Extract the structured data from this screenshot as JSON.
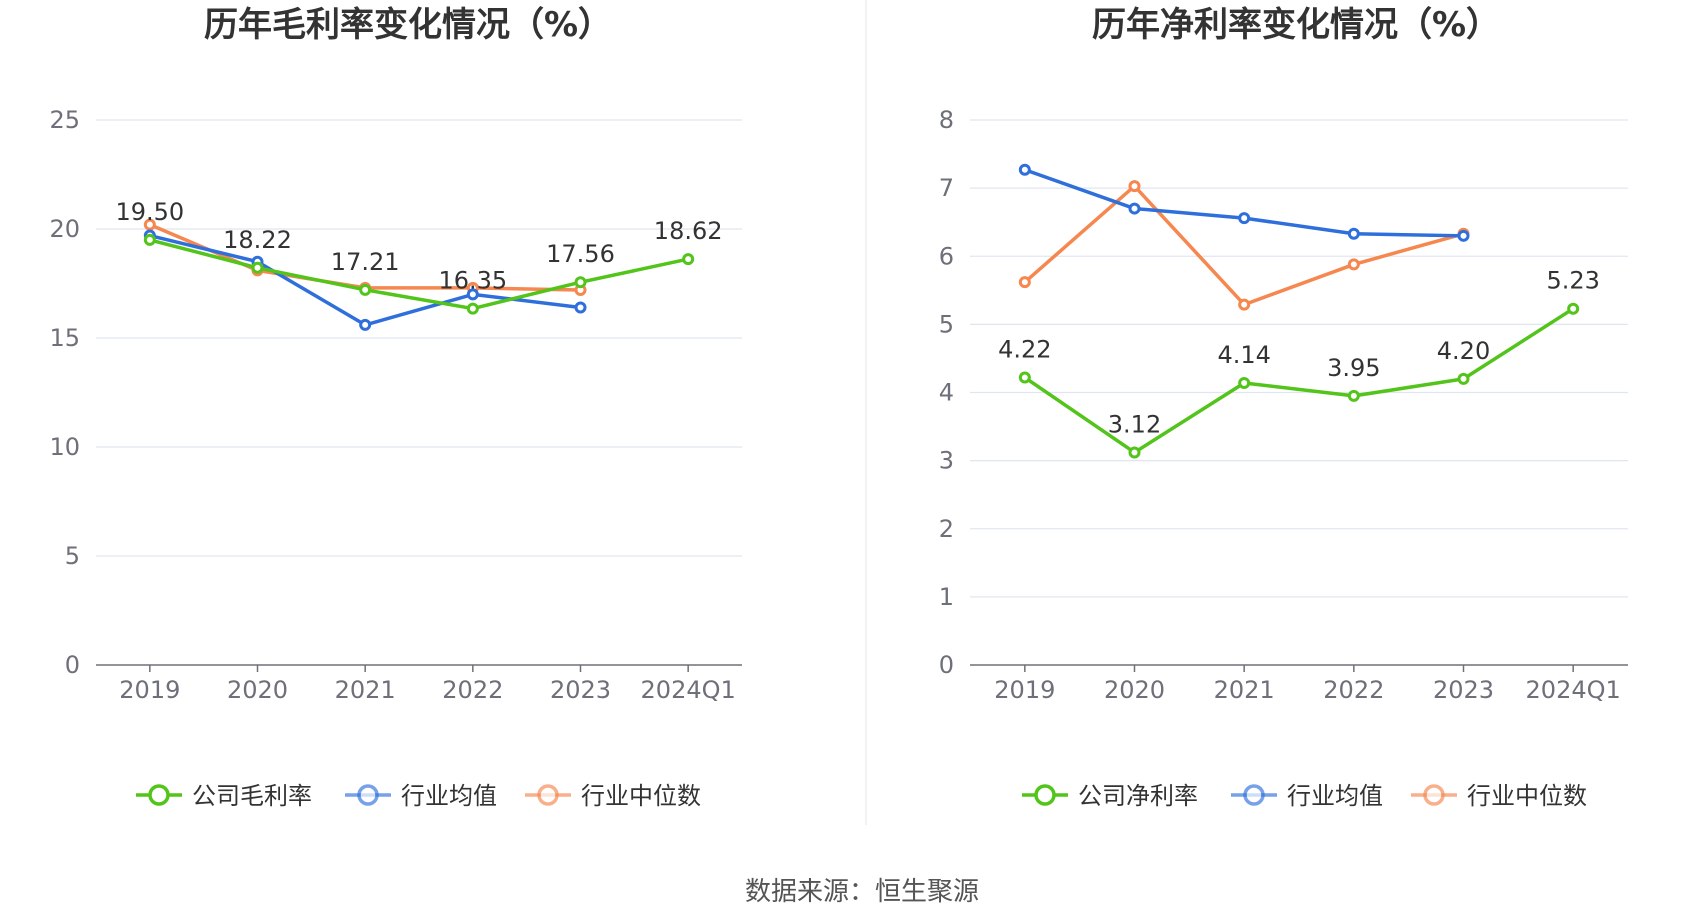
{
  "chart_data": [
    {
      "type": "line",
      "title": "历年毛利率变化情况（%）",
      "categories": [
        "2019",
        "2020",
        "2021",
        "2022",
        "2023",
        "2024Q1"
      ],
      "ylim": [
        0,
        25
      ],
      "yticks": [
        0,
        5,
        10,
        15,
        20,
        25
      ],
      "grid": true,
      "legend_position": "bottom",
      "series": [
        {
          "name": "公司毛利率",
          "color": "#52c41a",
          "values": [
            19.5,
            18.22,
            17.21,
            16.35,
            17.56,
            18.62
          ],
          "labels": [
            "19.50",
            "18.22",
            "17.21",
            "16.35",
            "17.56",
            "18.62"
          ]
        },
        {
          "name": "行业均值",
          "color": "#2f6fdc",
          "values": [
            19.7,
            18.5,
            15.6,
            17.0,
            16.4,
            null
          ]
        },
        {
          "name": "行业中位数",
          "color": "#f5874f",
          "values": [
            20.2,
            18.1,
            17.3,
            17.3,
            17.2,
            null
          ]
        }
      ]
    },
    {
      "type": "line",
      "title": "历年净利率变化情况（%）",
      "categories": [
        "2019",
        "2020",
        "2021",
        "2022",
        "2023",
        "2024Q1"
      ],
      "ylim": [
        0,
        8
      ],
      "yticks": [
        0,
        1,
        2,
        3,
        4,
        5,
        6,
        7,
        8
      ],
      "grid": true,
      "legend_position": "bottom",
      "series": [
        {
          "name": "公司净利率",
          "color": "#52c41a",
          "values": [
            4.22,
            3.12,
            4.14,
            3.95,
            4.2,
            5.23
          ],
          "labels": [
            "4.22",
            "3.12",
            "4.14",
            "3.95",
            "4.20",
            "5.23"
          ]
        },
        {
          "name": "行业均值",
          "color": "#2f6fdc",
          "values": [
            7.27,
            6.7,
            6.56,
            6.33,
            6.3,
            null
          ]
        },
        {
          "name": "行业中位数",
          "color": "#f5874f",
          "values": [
            5.62,
            7.03,
            5.29,
            5.88,
            6.33,
            null
          ]
        }
      ]
    }
  ],
  "source": "数据来源：恒生聚源"
}
